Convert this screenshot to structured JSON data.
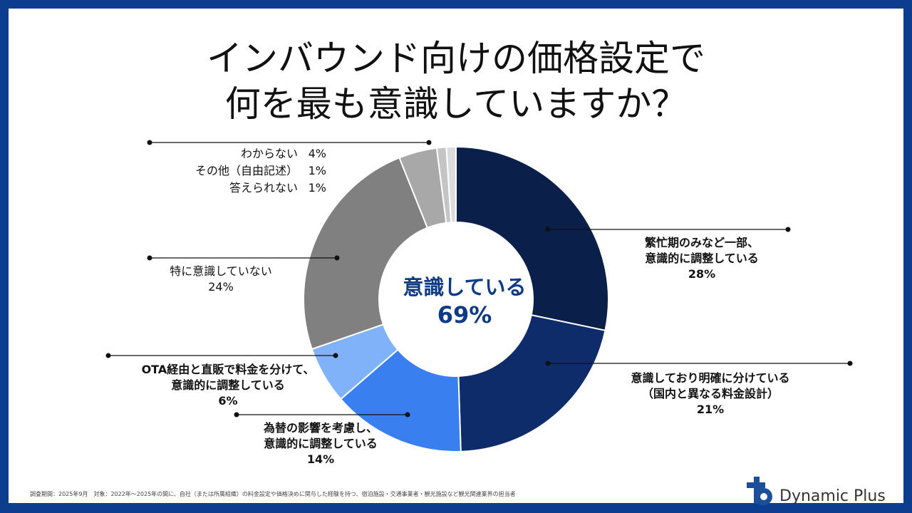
{
  "title": {
    "line1": "インバウンド向けの価格設定で",
    "line2": "何を最も意識していますか？"
  },
  "chart_data": {
    "type": "pie",
    "title": "インバウンド向けの価格設定で何を最も意識していますか？",
    "center_label": "意識している",
    "center_value": "69%",
    "slices": [
      {
        "label_lines": [
          "繁忙期のみなど一部、",
          "意識的に調整している"
        ],
        "value": 28,
        "value_label": "28%",
        "color": "#0a1f4a"
      },
      {
        "label_lines": [
          "意識しており明確に分けている",
          "（国内と異なる料金設計）"
        ],
        "value": 21,
        "value_label": "21%",
        "color": "#0f2c6a"
      },
      {
        "label_lines": [
          "為替の影響を考慮し、",
          "意識的に調整している"
        ],
        "value": 14,
        "value_label": "14%",
        "color": "#3a7ff0"
      },
      {
        "label_lines": [
          "OTA経由と直販で料金を分けて、",
          "意識的に調整している"
        ],
        "value": 6,
        "value_label": "6%",
        "color": "#7fb2f8"
      },
      {
        "label_lines": [
          "特に意識していない"
        ],
        "value": 24,
        "value_label": "24%",
        "color": "#808080"
      },
      {
        "label_lines": [
          "わからない"
        ],
        "value": 4,
        "value_label": "4%",
        "color": "#a8a8a8"
      },
      {
        "label_lines": [
          "その他（自由記述）"
        ],
        "value": 1,
        "value_label": "1%",
        "color": "#c4c4c4"
      },
      {
        "label_lines": [
          "答えられない"
        ],
        "value": 1,
        "value_label": "1%",
        "color": "#dcdcdc"
      }
    ]
  },
  "footnote": "調査期間：2025年9月　対象：2022年～2025年の間に、自社（または所属組織）の料金設定や価格決めに関与した経験を持つ、宿泊施設・交通事業者・観光施設など観光関連業界の担当者",
  "logo": {
    "text": "Dynamic Plus",
    "color": "#1b4f9c"
  }
}
